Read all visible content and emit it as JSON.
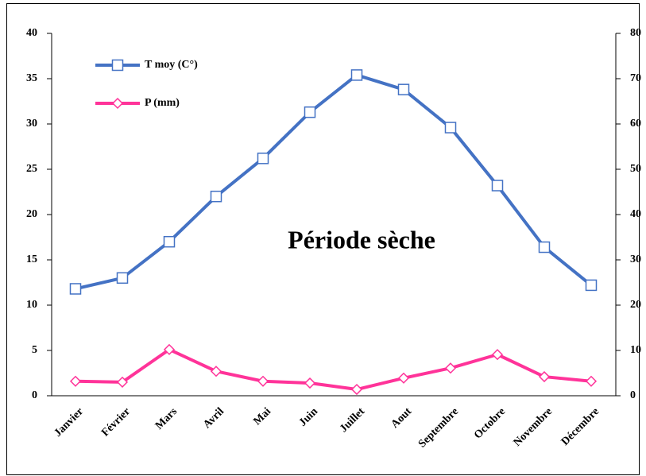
{
  "chart_data": {
    "type": "line",
    "annotation": "Période sèche",
    "categories": [
      "Janvier",
      "Février",
      "Mars",
      "Avril",
      "Mai",
      "Juin",
      "Juillet",
      "Aout",
      "Septembre",
      "Octobre",
      "Novembre",
      "Décembre"
    ],
    "series": [
      {
        "name": "T moy (C°)",
        "color": "#4472c4",
        "marker": "square",
        "values": [
          11.8,
          13.0,
          17.0,
          22.0,
          26.2,
          31.3,
          35.4,
          33.8,
          29.6,
          23.2,
          16.4,
          12.2
        ]
      },
      {
        "name": "P (mm)",
        "color": "#ff3399",
        "marker": "diamond",
        "axis": "y2",
        "values": [
          3.2,
          3.0,
          10.2,
          5.4,
          3.2,
          2.8,
          1.4,
          3.9,
          6.1,
          9.1,
          4.2,
          3.2
        ]
      }
    ],
    "ylim": [
      0,
      40
    ],
    "yticks": [
      0,
      5,
      10,
      15,
      20,
      25,
      30,
      35,
      40
    ],
    "y2lim": [
      0,
      80
    ],
    "y2ticks": [
      0,
      10,
      20,
      30,
      40,
      50,
      60,
      70,
      80
    ],
    "grid": false,
    "legend": "upper left"
  }
}
